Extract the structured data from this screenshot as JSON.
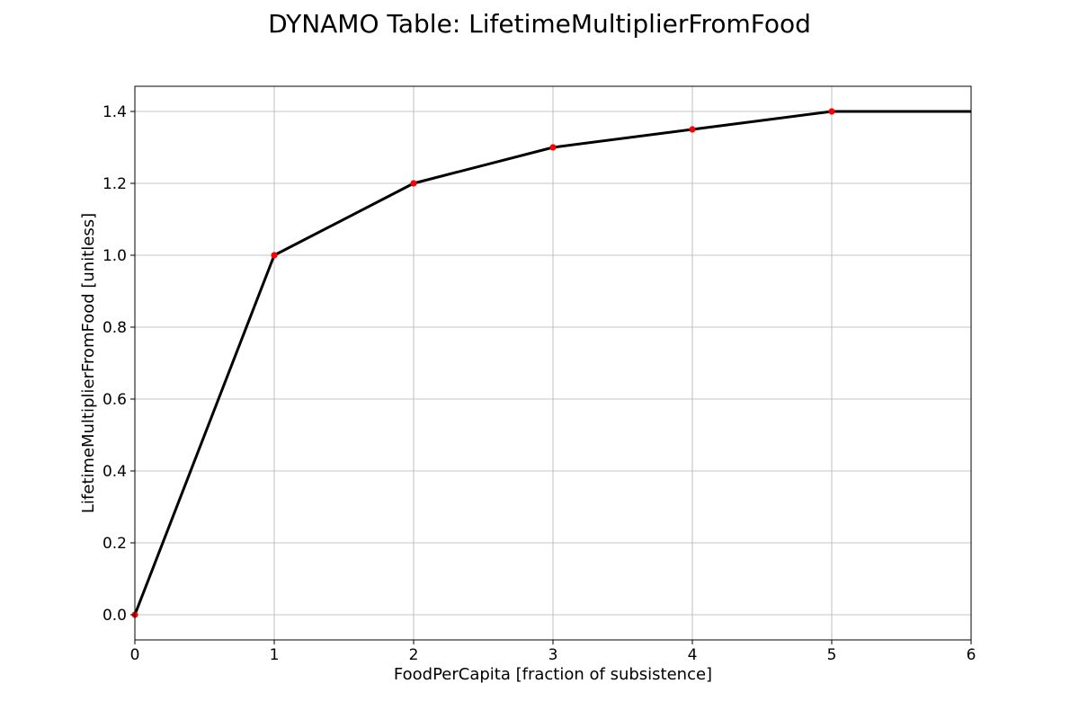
{
  "chart_data": {
    "type": "line",
    "title": "DYNAMO Table: LifetimeMultiplierFromFood",
    "xlabel": "FoodPerCapita [fraction of subsistence]",
    "ylabel": "LifetimeMultiplierFromFood [unitless]",
    "xlim": [
      0,
      6
    ],
    "ylim": [
      -0.07,
      1.47
    ],
    "xticks": [
      0,
      1,
      2,
      3,
      4,
      5,
      6
    ],
    "yticks": [
      0.0,
      0.2,
      0.4,
      0.6,
      0.8,
      1.0,
      1.2,
      1.4
    ],
    "xtick_labels": [
      "0",
      "1",
      "2",
      "3",
      "4",
      "5",
      "6"
    ],
    "ytick_labels": [
      "0.0",
      "0.2",
      "0.4",
      "0.6",
      "0.8",
      "1.0",
      "1.2",
      "1.4"
    ],
    "grid": true,
    "series": [
      {
        "type": "line",
        "color": "#000000",
        "x": [
          0,
          1,
          2,
          3,
          4,
          5,
          6
        ],
        "y": [
          0.0,
          1.0,
          1.2,
          1.3,
          1.35,
          1.4,
          1.4
        ]
      },
      {
        "type": "scatter",
        "color": "#ff0000",
        "x": [
          0,
          1,
          2,
          3,
          4,
          5
        ],
        "y": [
          0.0,
          1.0,
          1.2,
          1.3,
          1.35,
          1.4
        ]
      }
    ]
  }
}
